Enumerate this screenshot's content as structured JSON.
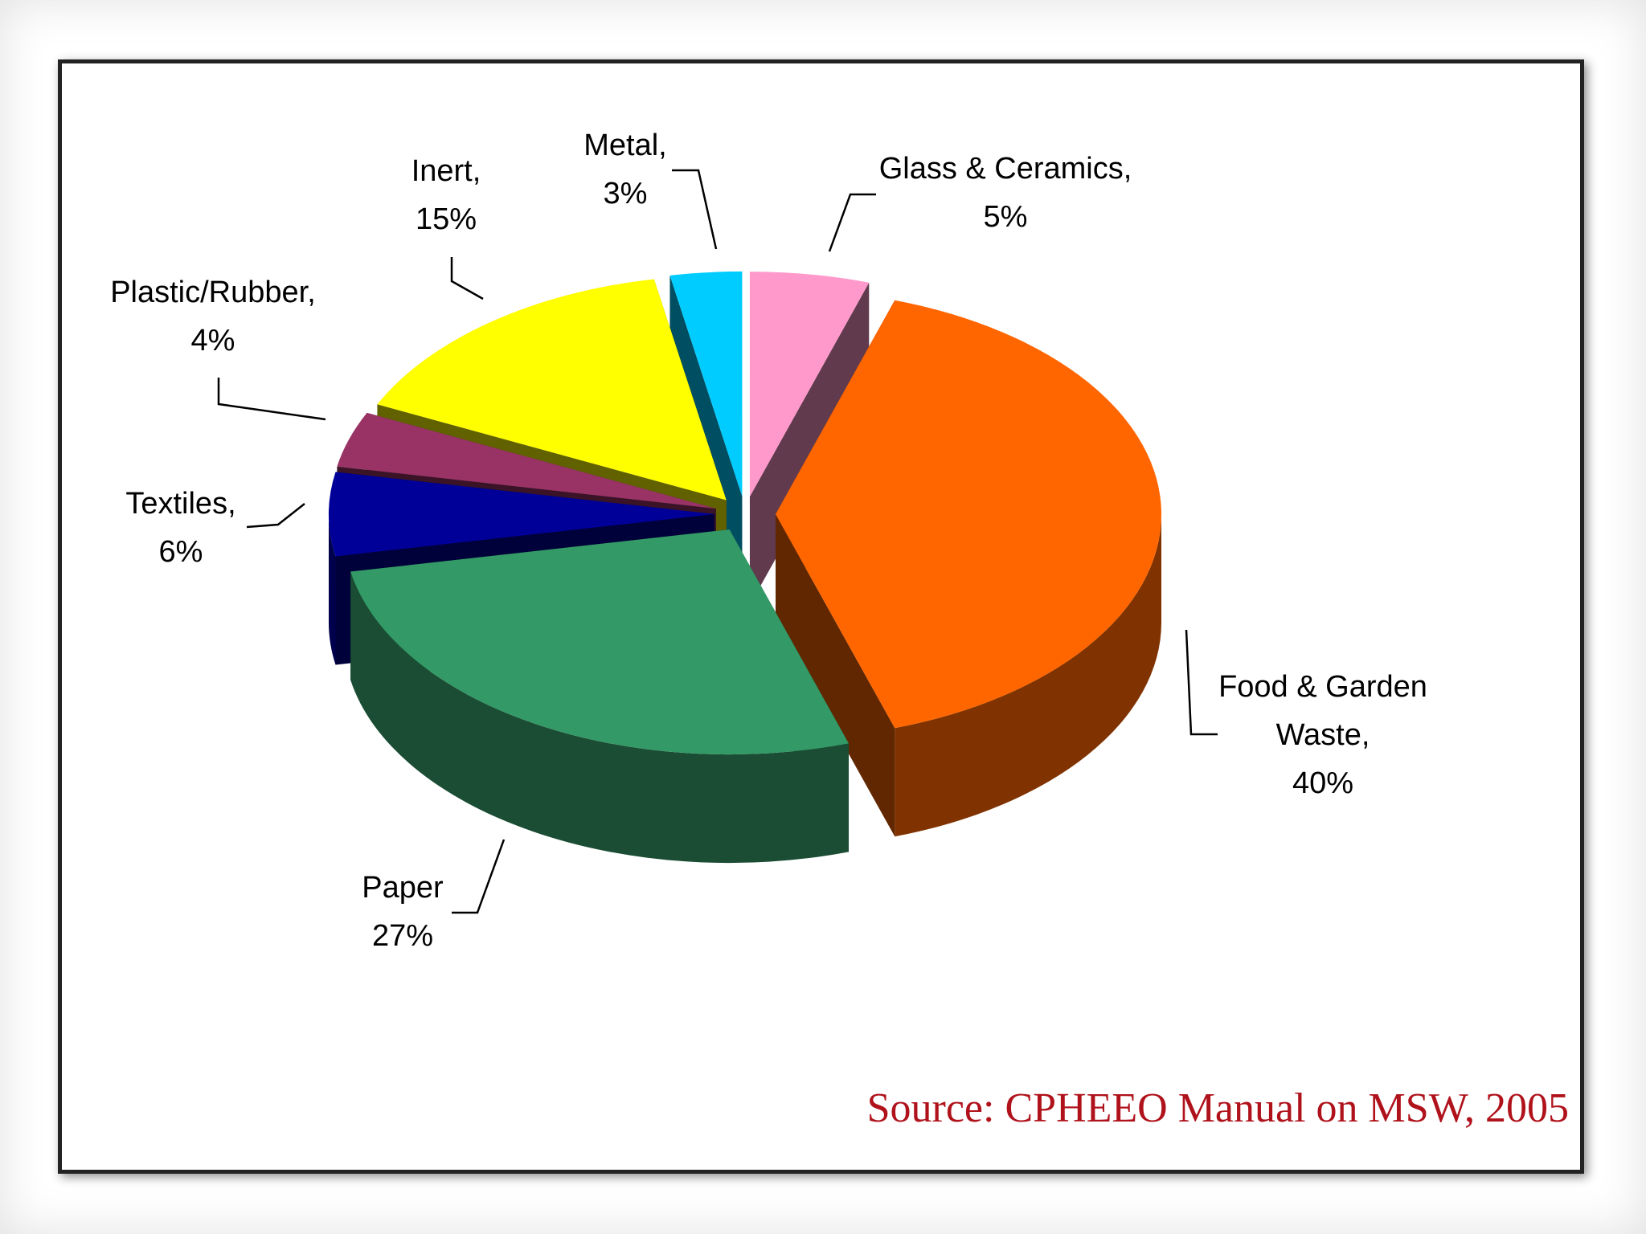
{
  "chart_data": {
    "type": "pie",
    "categories": [
      "Glass & Ceramics,",
      "Food & Garden Waste,",
      "Paper",
      "Textiles,",
      "Plastic/Rubber,",
      "Inert,",
      "Metal,"
    ],
    "values": [
      5,
      40,
      27,
      6,
      4,
      15,
      3
    ],
    "value_labels": [
      "5%",
      "40%",
      "27%",
      "6%",
      "4%",
      "15%",
      "3%"
    ],
    "colors": [
      "#ff99cc",
      "#ff6600",
      "#339966",
      "#000099",
      "#993366",
      "#ffff00",
      "#00ccff"
    ],
    "source": "Source: CPHEEO Manual on MSW, 2005"
  }
}
